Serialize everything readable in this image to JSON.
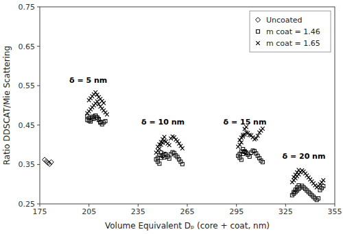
{
  "chart_data": {
    "type": "scatter",
    "xlabel": "Volume Equivalent Dₚ (core + coat, nm)",
    "ylabel": "Ratio DDSCAT/Mie Scattering",
    "xlim": [
      175,
      355
    ],
    "ylim": [
      0.25,
      0.75
    ],
    "xticks": [
      175,
      205,
      235,
      265,
      295,
      325,
      355
    ],
    "yticks": [
      0.25,
      0.35,
      0.45,
      0.55,
      0.65,
      0.75
    ],
    "legend": "upper right",
    "annotations": [
      {
        "text": "δ = 5 nm",
        "x": 193,
        "y": 0.557
      },
      {
        "text": "δ = 10 nm",
        "x": 237,
        "y": 0.452
      },
      {
        "text": "δ = 15 nm",
        "x": 287,
        "y": 0.452
      },
      {
        "text": "δ = 20 nm",
        "x": 323,
        "y": 0.364
      }
    ],
    "series": [
      {
        "name": "Uncoated",
        "marker": "diamond",
        "color": "#000000",
        "x": [
          178,
          179,
          180,
          181,
          182
        ],
        "values": [
          0.362,
          0.358,
          0.354,
          0.351,
          0.356
        ]
      },
      {
        "name": "m coat = 1.46",
        "marker": "square",
        "color": "#000000",
        "x": [
          204,
          205,
          206,
          207,
          208,
          209,
          210,
          211,
          212,
          213,
          214,
          215,
          204,
          205,
          206,
          207,
          208,
          209,
          210,
          211,
          212,
          246,
          247,
          248,
          249,
          250,
          251,
          252,
          253,
          254,
          255,
          256,
          257,
          258,
          259,
          260,
          261,
          262,
          247,
          248,
          249,
          250,
          251,
          296,
          297,
          298,
          299,
          300,
          301,
          302,
          303,
          304,
          305,
          306,
          307,
          308,
          309,
          310,
          311,
          297,
          298,
          299,
          300,
          301,
          329,
          330,
          331,
          332,
          333,
          334,
          335,
          336,
          337,
          338,
          339,
          340,
          341,
          342,
          343,
          344,
          345,
          346,
          347,
          348,
          330,
          331,
          332,
          333
        ],
        "values": [
          0.463,
          0.461,
          0.459,
          0.467,
          0.471,
          0.474,
          0.469,
          0.463,
          0.456,
          0.452,
          0.457,
          0.46,
          0.473,
          0.468,
          0.463,
          0.471,
          0.466,
          0.474,
          0.469,
          0.465,
          0.458,
          0.363,
          0.357,
          0.352,
          0.367,
          0.372,
          0.377,
          0.375,
          0.37,
          0.365,
          0.376,
          0.381,
          0.379,
          0.373,
          0.369,
          0.363,
          0.357,
          0.351,
          0.367,
          0.374,
          0.38,
          0.373,
          0.368,
          0.372,
          0.367,
          0.362,
          0.377,
          0.382,
          0.38,
          0.375,
          0.37,
          0.38,
          0.385,
          0.384,
          0.378,
          0.372,
          0.366,
          0.36,
          0.356,
          0.377,
          0.383,
          0.389,
          0.384,
          0.379,
          0.272,
          0.276,
          0.28,
          0.284,
          0.288,
          0.292,
          0.296,
          0.292,
          0.288,
          0.284,
          0.28,
          0.276,
          0.272,
          0.268,
          0.264,
          0.26,
          0.264,
          0.285,
          0.29,
          0.295,
          0.28,
          0.286,
          0.292,
          0.297
        ]
      },
      {
        "name": "m coat = 1.65",
        "marker": "x",
        "color": "#000000",
        "x": [
          204,
          205,
          206,
          207,
          208,
          209,
          210,
          211,
          212,
          213,
          214,
          215,
          216,
          205,
          206,
          207,
          208,
          209,
          210,
          211,
          212,
          213,
          214,
          246,
          247,
          248,
          249,
          250,
          251,
          252,
          253,
          254,
          255,
          256,
          257,
          258,
          259,
          260,
          261,
          262,
          247,
          248,
          249,
          250,
          251,
          296,
          297,
          298,
          299,
          300,
          301,
          302,
          303,
          304,
          305,
          306,
          307,
          308,
          309,
          310,
          311,
          297,
          298,
          299,
          300,
          301,
          329,
          330,
          331,
          332,
          333,
          334,
          335,
          336,
          337,
          338,
          339,
          340,
          341,
          342,
          343,
          344,
          345,
          346,
          347,
          348,
          330,
          331,
          332,
          333
        ],
        "values": [
          0.48,
          0.485,
          0.49,
          0.495,
          0.5,
          0.505,
          0.51,
          0.503,
          0.497,
          0.492,
          0.487,
          0.482,
          0.477,
          0.513,
          0.518,
          0.523,
          0.528,
          0.533,
          0.527,
          0.521,
          0.516,
          0.511,
          0.506,
          0.38,
          0.385,
          0.39,
          0.4,
          0.405,
          0.41,
          0.408,
          0.403,
          0.399,
          0.416,
          0.421,
          0.419,
          0.413,
          0.409,
          0.403,
          0.397,
          0.391,
          0.395,
          0.401,
          0.407,
          0.414,
          0.42,
          0.395,
          0.4,
          0.406,
          0.421,
          0.426,
          0.431,
          0.43,
          0.425,
          0.424,
          0.419,
          0.414,
          0.416,
          0.423,
          0.431,
          0.436,
          0.441,
          0.412,
          0.418,
          0.425,
          0.44,
          0.445,
          0.305,
          0.31,
          0.315,
          0.32,
          0.325,
          0.33,
          0.335,
          0.332,
          0.327,
          0.322,
          0.317,
          0.312,
          0.307,
          0.302,
          0.297,
          0.292,
          0.295,
          0.3,
          0.305,
          0.31,
          0.318,
          0.324,
          0.33,
          0.336
        ]
      }
    ]
  }
}
